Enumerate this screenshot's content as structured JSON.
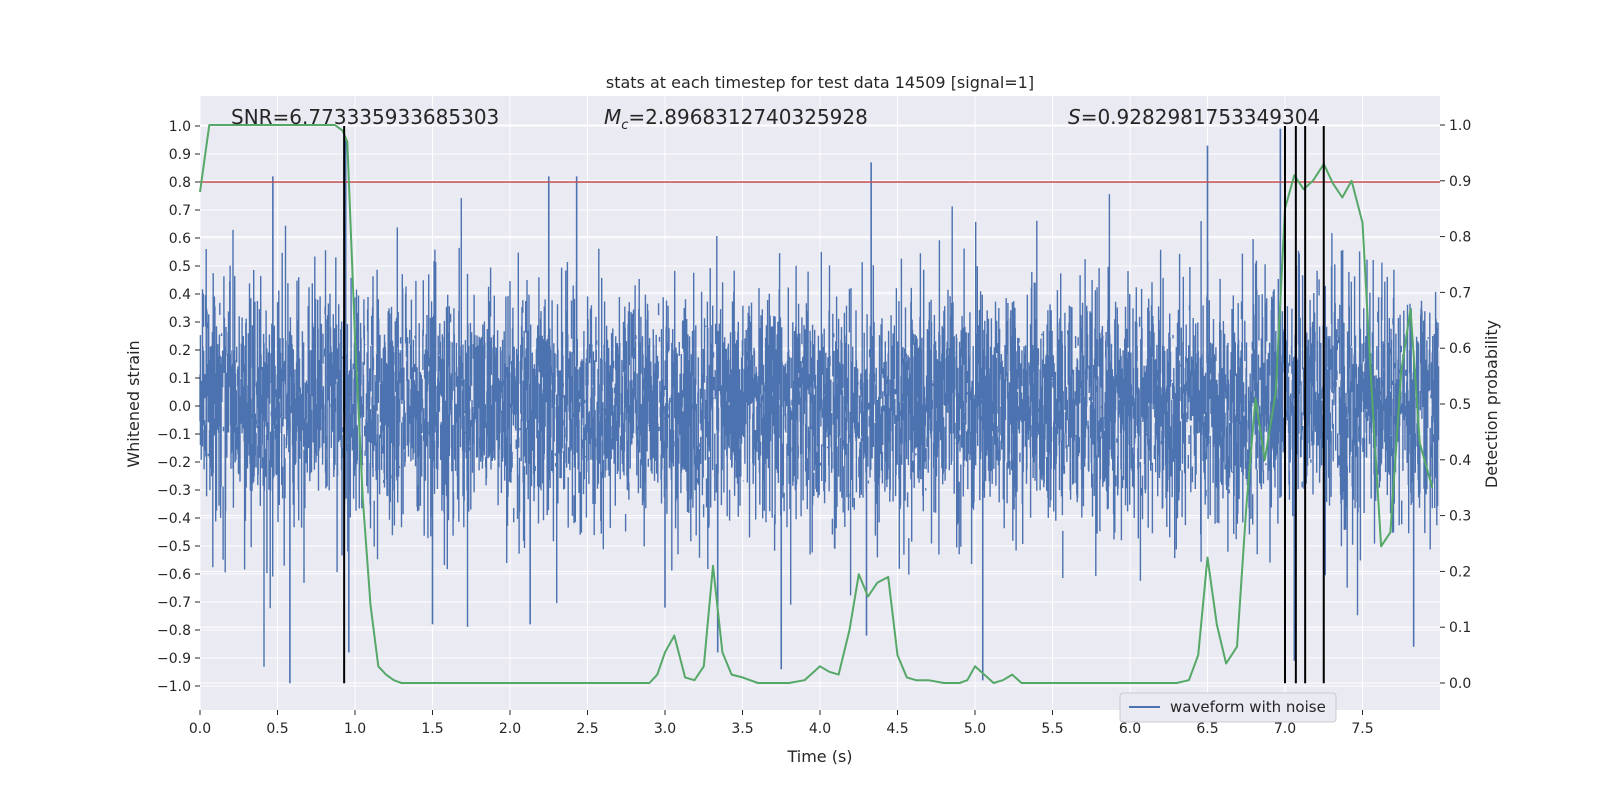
{
  "chart_data": {
    "type": "line",
    "title": "stats at each timestep for test data 14509 [signal=1]",
    "xlabel": "Time (s)",
    "ylabel_left": "Whitened strain",
    "ylabel_right": "Detection probability",
    "xlim": [
      0.0,
      8.0
    ],
    "ylim_left": [
      -1.08,
      1.08
    ],
    "ylim_right": [
      -0.05,
      1.05
    ],
    "x_ticks": [
      0.0,
      0.5,
      1.0,
      1.5,
      2.0,
      2.5,
      3.0,
      3.5,
      4.0,
      4.5,
      5.0,
      5.5,
      6.0,
      6.5,
      7.0,
      7.5
    ],
    "x_tick_labels": [
      "0.0",
      "0.5",
      "1.0",
      "1.5",
      "2.0",
      "2.5",
      "3.0",
      "3.5",
      "4.0",
      "4.5",
      "5.0",
      "5.5",
      "6.0",
      "6.5",
      "7.0",
      "7.5"
    ],
    "y_left_ticks": [
      -1.0,
      -0.9,
      -0.8,
      -0.7,
      -0.6,
      -0.5,
      -0.4,
      -0.3,
      -0.2,
      -0.1,
      0.0,
      0.1,
      0.2,
      0.3,
      0.4,
      0.5,
      0.6,
      0.7,
      0.8,
      0.9,
      1.0
    ],
    "y_left_tick_labels": [
      "−1.0",
      "−0.9",
      "−0.8",
      "−0.7",
      "−0.6",
      "−0.5",
      "−0.4",
      "−0.3",
      "−0.2",
      "−0.1",
      "0.0",
      "0.1",
      "0.2",
      "0.3",
      "0.4",
      "0.5",
      "0.6",
      "0.7",
      "0.8",
      "0.9",
      "1.0"
    ],
    "y_right_ticks": [
      0.0,
      0.1,
      0.2,
      0.3,
      0.4,
      0.5,
      0.6,
      0.7,
      0.8,
      0.9,
      1.0
    ],
    "y_right_tick_labels": [
      "0.0",
      "0.1",
      "0.2",
      "0.3",
      "0.4",
      "0.5",
      "0.6",
      "0.7",
      "0.8",
      "0.9",
      "1.0"
    ],
    "annotations": {
      "snr": "SNR=6.773335933685303",
      "mc_symbol": "M",
      "mc_subscript": "c",
      "mc_value": "=2.8968312740325928",
      "s_symbol": "S",
      "s_value": "=0.9282981753349304"
    },
    "legend": {
      "placement": "bottom-right",
      "entries": [
        "waveform with noise"
      ]
    },
    "grid": true,
    "waveform": {
      "name": "waveform with noise",
      "color": "#4c72b0",
      "noise_std_estimate": 0.2,
      "peaks": [
        {
          "x": 0.47,
          "y": 0.82
        },
        {
          "x": 0.58,
          "y": -0.99
        },
        {
          "x": 0.94,
          "y": 0.95
        },
        {
          "x": 0.96,
          "y": -0.88
        },
        {
          "x": 1.5,
          "y": -0.78
        },
        {
          "x": 2.13,
          "y": -0.78
        },
        {
          "x": 2.25,
          "y": 0.82
        },
        {
          "x": 2.43,
          "y": 0.82
        },
        {
          "x": 3.0,
          "y": -0.72
        },
        {
          "x": 3.34,
          "y": -0.88
        },
        {
          "x": 3.75,
          "y": -0.94
        },
        {
          "x": 4.33,
          "y": 0.87
        },
        {
          "x": 4.3,
          "y": -0.82
        },
        {
          "x": 5.05,
          "y": -0.98
        },
        {
          "x": 6.5,
          "y": 0.93
        },
        {
          "x": 6.97,
          "y": 0.99
        },
        {
          "x": 7.06,
          "y": -0.91
        },
        {
          "x": 7.25,
          "y": -0.98
        },
        {
          "x": 7.83,
          "y": -0.86
        }
      ]
    },
    "detection_probability": {
      "color": "#55a868",
      "x": [
        0.0,
        0.06,
        0.12,
        0.2,
        0.3,
        0.4,
        0.5,
        0.6,
        0.7,
        0.8,
        0.87,
        0.92,
        0.95,
        1.0,
        1.05,
        1.1,
        1.15,
        1.2,
        1.25,
        1.3,
        1.4,
        1.5,
        1.6,
        1.7,
        1.8,
        1.9,
        2.0,
        2.1,
        2.2,
        2.3,
        2.4,
        2.5,
        2.6,
        2.7,
        2.8,
        2.9,
        2.95,
        3.0,
        3.06,
        3.13,
        3.19,
        3.25,
        3.31,
        3.37,
        3.43,
        3.5,
        3.6,
        3.7,
        3.8,
        3.9,
        4.0,
        4.06,
        4.12,
        4.19,
        4.25,
        4.31,
        4.37,
        4.44,
        4.5,
        4.56,
        4.62,
        4.7,
        4.8,
        4.9,
        4.95,
        5.0,
        5.06,
        5.12,
        5.18,
        5.24,
        5.3,
        5.4,
        5.5,
        5.6,
        5.7,
        5.8,
        5.9,
        6.0,
        6.1,
        6.2,
        6.3,
        6.38,
        6.44,
        6.5,
        6.56,
        6.62,
        6.69,
        6.75,
        6.81,
        6.87,
        6.94,
        7.0,
        7.06,
        7.12,
        7.18,
        7.25,
        7.31,
        7.37,
        7.43,
        7.5,
        7.56,
        7.62,
        7.68,
        7.75,
        7.81,
        7.87,
        7.95
      ],
      "y": [
        0.88,
        1.0,
        1.0,
        1.0,
        1.0,
        1.0,
        1.0,
        1.0,
        1.0,
        1.0,
        1.0,
        0.99,
        0.97,
        0.62,
        0.33,
        0.14,
        0.03,
        0.015,
        0.005,
        0.0,
        0.0,
        0.0,
        0.0,
        0.0,
        0.0,
        0.0,
        0.0,
        0.0,
        0.0,
        0.0,
        0.0,
        0.0,
        0.0,
        0.0,
        0.0,
        0.0,
        0.015,
        0.055,
        0.085,
        0.01,
        0.005,
        0.03,
        0.21,
        0.055,
        0.015,
        0.01,
        0.0,
        0.0,
        0.0,
        0.005,
        0.03,
        0.02,
        0.015,
        0.095,
        0.195,
        0.155,
        0.18,
        0.19,
        0.05,
        0.01,
        0.005,
        0.005,
        0.0,
        0.0,
        0.005,
        0.03,
        0.015,
        0.0,
        0.005,
        0.015,
        0.0,
        0.0,
        0.0,
        0.0,
        0.0,
        0.0,
        0.0,
        0.0,
        0.0,
        0.0,
        0.0,
        0.005,
        0.05,
        0.225,
        0.105,
        0.035,
        0.065,
        0.315,
        0.51,
        0.4,
        0.52,
        0.85,
        0.91,
        0.885,
        0.9,
        0.93,
        0.895,
        0.87,
        0.9,
        0.825,
        0.52,
        0.245,
        0.27,
        0.56,
        0.67,
        0.43,
        0.35
      ]
    },
    "threshold": {
      "color": "#c44e52",
      "y_left": 0.8
    },
    "event_lines": {
      "color": "#000000",
      "x": [
        0.93,
        7.0,
        7.07,
        7.13,
        7.25
      ],
      "y_left_range": [
        -0.99,
        1.0
      ]
    }
  }
}
